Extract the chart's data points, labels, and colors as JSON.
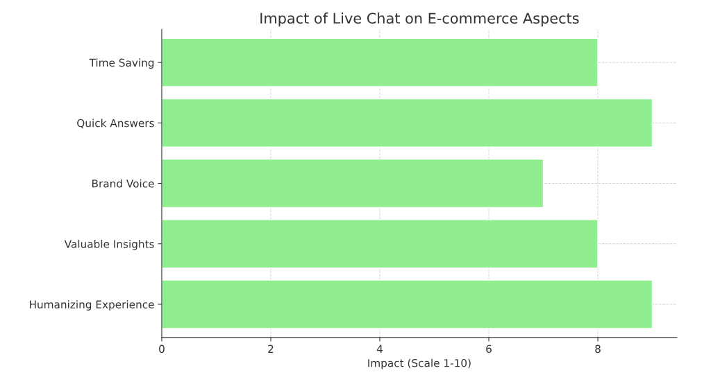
{
  "chart_data": {
    "type": "bar",
    "orientation": "horizontal",
    "title": "Impact of Live Chat on E-commerce Aspects",
    "xlabel": "Impact (Scale 1-10)",
    "categories": [
      "Time Saving",
      "Quick Answers",
      "Brand Voice",
      "Valuable Insights",
      "Humanizing Experience"
    ],
    "values": [
      8,
      9,
      7,
      8,
      9
    ],
    "color": "#90ee90",
    "xlim": [
      0,
      9.45
    ],
    "xticks": [
      0,
      2,
      4,
      6,
      8
    ],
    "grid": true
  }
}
